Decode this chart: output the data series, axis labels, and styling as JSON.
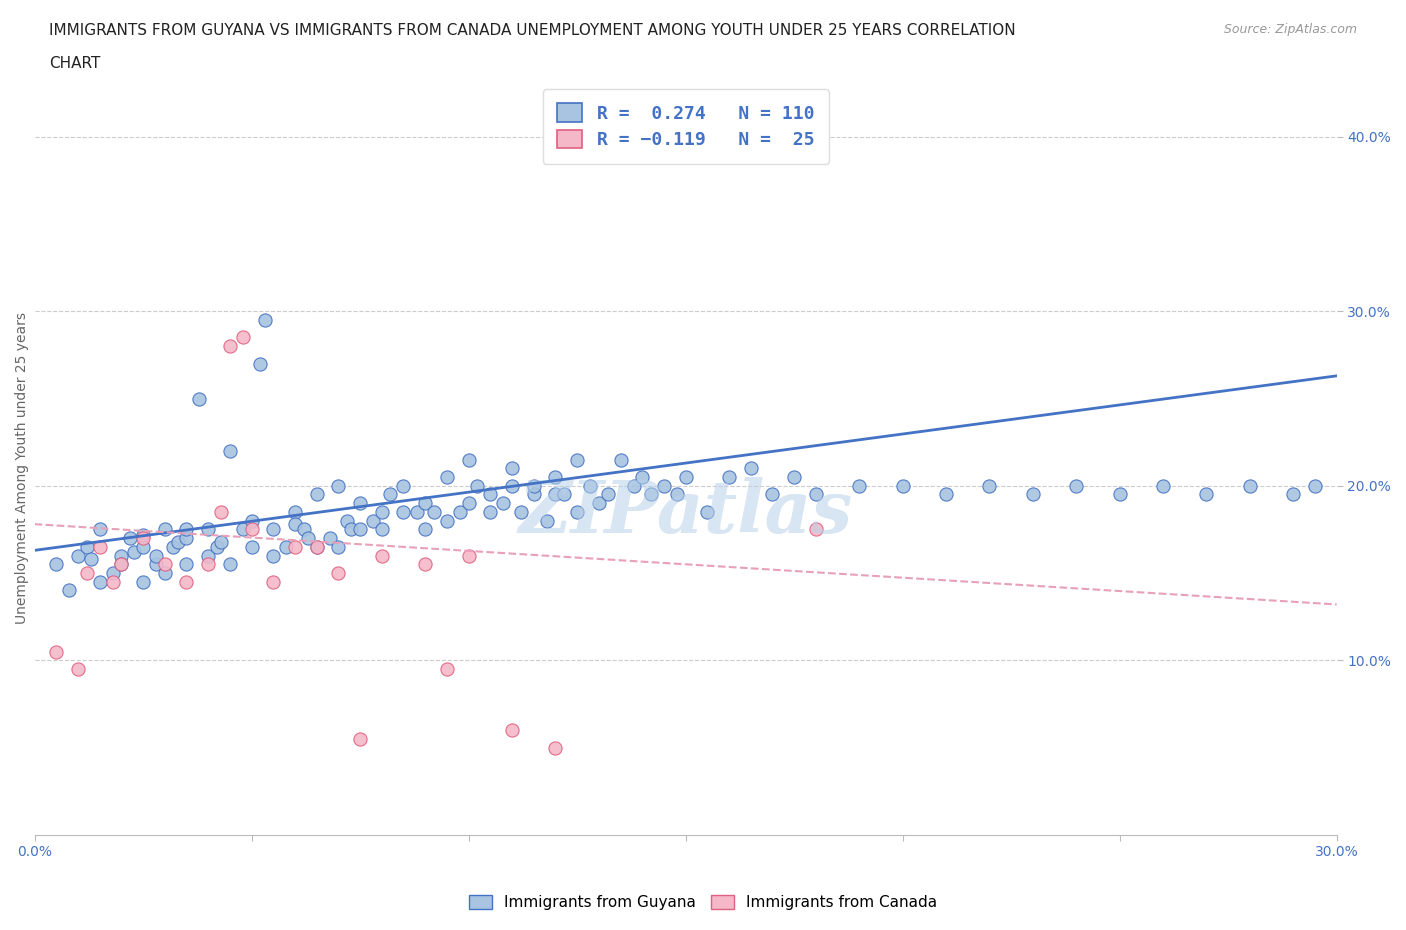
{
  "title_line1": "IMMIGRANTS FROM GUYANA VS IMMIGRANTS FROM CANADA UNEMPLOYMENT AMONG YOUTH UNDER 25 YEARS CORRELATION",
  "title_line2": "CHART",
  "source": "Source: ZipAtlas.com",
  "ylabel_label": "Unemployment Among Youth under 25 years",
  "watermark": "ZIPatlas",
  "legend_label1": "Immigrants from Guyana",
  "legend_label2": "Immigrants from Canada",
  "color_guyana_fill": "#a8c4e0",
  "color_canada_fill": "#f4b8c8",
  "color_guyana_edge": "#4472c4",
  "color_canada_edge": "#e06080",
  "color_line_guyana": "#4472c4",
  "color_line_canada": "#e8a0b8",
  "xlim": [
    0.0,
    0.3
  ],
  "ylim": [
    0.0,
    0.42
  ],
  "yticks": [
    0.1,
    0.2,
    0.3,
    0.4
  ],
  "ytick_labels": [
    "10.0%",
    "20.0%",
    "30.0%",
    "40.0%"
  ],
  "xticks": [
    0.0,
    0.05,
    0.1,
    0.15,
    0.2,
    0.25,
    0.3
  ],
  "xtick_labels": [
    "0.0%",
    "",
    "",
    "",
    "",
    "",
    "30.0%"
  ],
  "guyana_x": [
    0.005,
    0.008,
    0.01,
    0.012,
    0.013,
    0.015,
    0.015,
    0.018,
    0.02,
    0.02,
    0.022,
    0.023,
    0.025,
    0.025,
    0.025,
    0.028,
    0.028,
    0.03,
    0.03,
    0.032,
    0.033,
    0.035,
    0.035,
    0.035,
    0.038,
    0.04,
    0.04,
    0.042,
    0.043,
    0.045,
    0.045,
    0.048,
    0.05,
    0.05,
    0.052,
    0.053,
    0.055,
    0.055,
    0.058,
    0.06,
    0.06,
    0.062,
    0.063,
    0.065,
    0.065,
    0.068,
    0.07,
    0.07,
    0.072,
    0.073,
    0.075,
    0.075,
    0.078,
    0.08,
    0.08,
    0.082,
    0.085,
    0.085,
    0.088,
    0.09,
    0.09,
    0.092,
    0.095,
    0.095,
    0.098,
    0.1,
    0.1,
    0.102,
    0.105,
    0.105,
    0.108,
    0.11,
    0.11,
    0.112,
    0.115,
    0.115,
    0.118,
    0.12,
    0.12,
    0.122,
    0.125,
    0.125,
    0.128,
    0.13,
    0.132,
    0.135,
    0.138,
    0.14,
    0.142,
    0.145,
    0.148,
    0.15,
    0.155,
    0.16,
    0.165,
    0.17,
    0.175,
    0.18,
    0.19,
    0.2,
    0.21,
    0.22,
    0.23,
    0.24,
    0.25,
    0.26,
    0.27,
    0.28,
    0.29,
    0.295
  ],
  "guyana_y": [
    0.155,
    0.14,
    0.16,
    0.165,
    0.158,
    0.145,
    0.175,
    0.15,
    0.16,
    0.155,
    0.17,
    0.162,
    0.145,
    0.165,
    0.172,
    0.155,
    0.16,
    0.15,
    0.175,
    0.165,
    0.168,
    0.17,
    0.155,
    0.175,
    0.25,
    0.16,
    0.175,
    0.165,
    0.168,
    0.155,
    0.22,
    0.175,
    0.165,
    0.18,
    0.27,
    0.295,
    0.16,
    0.175,
    0.165,
    0.185,
    0.178,
    0.175,
    0.17,
    0.165,
    0.195,
    0.17,
    0.165,
    0.2,
    0.18,
    0.175,
    0.175,
    0.19,
    0.18,
    0.175,
    0.185,
    0.195,
    0.185,
    0.2,
    0.185,
    0.175,
    0.19,
    0.185,
    0.18,
    0.205,
    0.185,
    0.19,
    0.215,
    0.2,
    0.185,
    0.195,
    0.19,
    0.2,
    0.21,
    0.185,
    0.195,
    0.2,
    0.18,
    0.195,
    0.205,
    0.195,
    0.185,
    0.215,
    0.2,
    0.19,
    0.195,
    0.215,
    0.2,
    0.205,
    0.195,
    0.2,
    0.195,
    0.205,
    0.185,
    0.205,
    0.21,
    0.195,
    0.205,
    0.195,
    0.2,
    0.2,
    0.195,
    0.2,
    0.195,
    0.2,
    0.195,
    0.2,
    0.195,
    0.2,
    0.195,
    0.2
  ],
  "canada_x": [
    0.005,
    0.01,
    0.012,
    0.015,
    0.018,
    0.02,
    0.025,
    0.03,
    0.035,
    0.04,
    0.043,
    0.045,
    0.048,
    0.05,
    0.055,
    0.06,
    0.065,
    0.07,
    0.075,
    0.08,
    0.09,
    0.095,
    0.1,
    0.11,
    0.12,
    0.18
  ],
  "canada_y": [
    0.105,
    0.095,
    0.15,
    0.165,
    0.145,
    0.155,
    0.17,
    0.155,
    0.145,
    0.155,
    0.185,
    0.28,
    0.285,
    0.175,
    0.145,
    0.165,
    0.165,
    0.15,
    0.055,
    0.16,
    0.155,
    0.095,
    0.16,
    0.06,
    0.05,
    0.175
  ],
  "guyana_trend_x": [
    0.0,
    0.3
  ],
  "guyana_trend_y": [
    0.163,
    0.263
  ],
  "canada_trend_x": [
    0.0,
    0.3
  ],
  "canada_trend_y": [
    0.178,
    0.132
  ],
  "bg_color": "#ffffff",
  "grid_color": "#cccccc",
  "title_fontsize": 11,
  "axis_label_fontsize": 10,
  "tick_fontsize": 10
}
